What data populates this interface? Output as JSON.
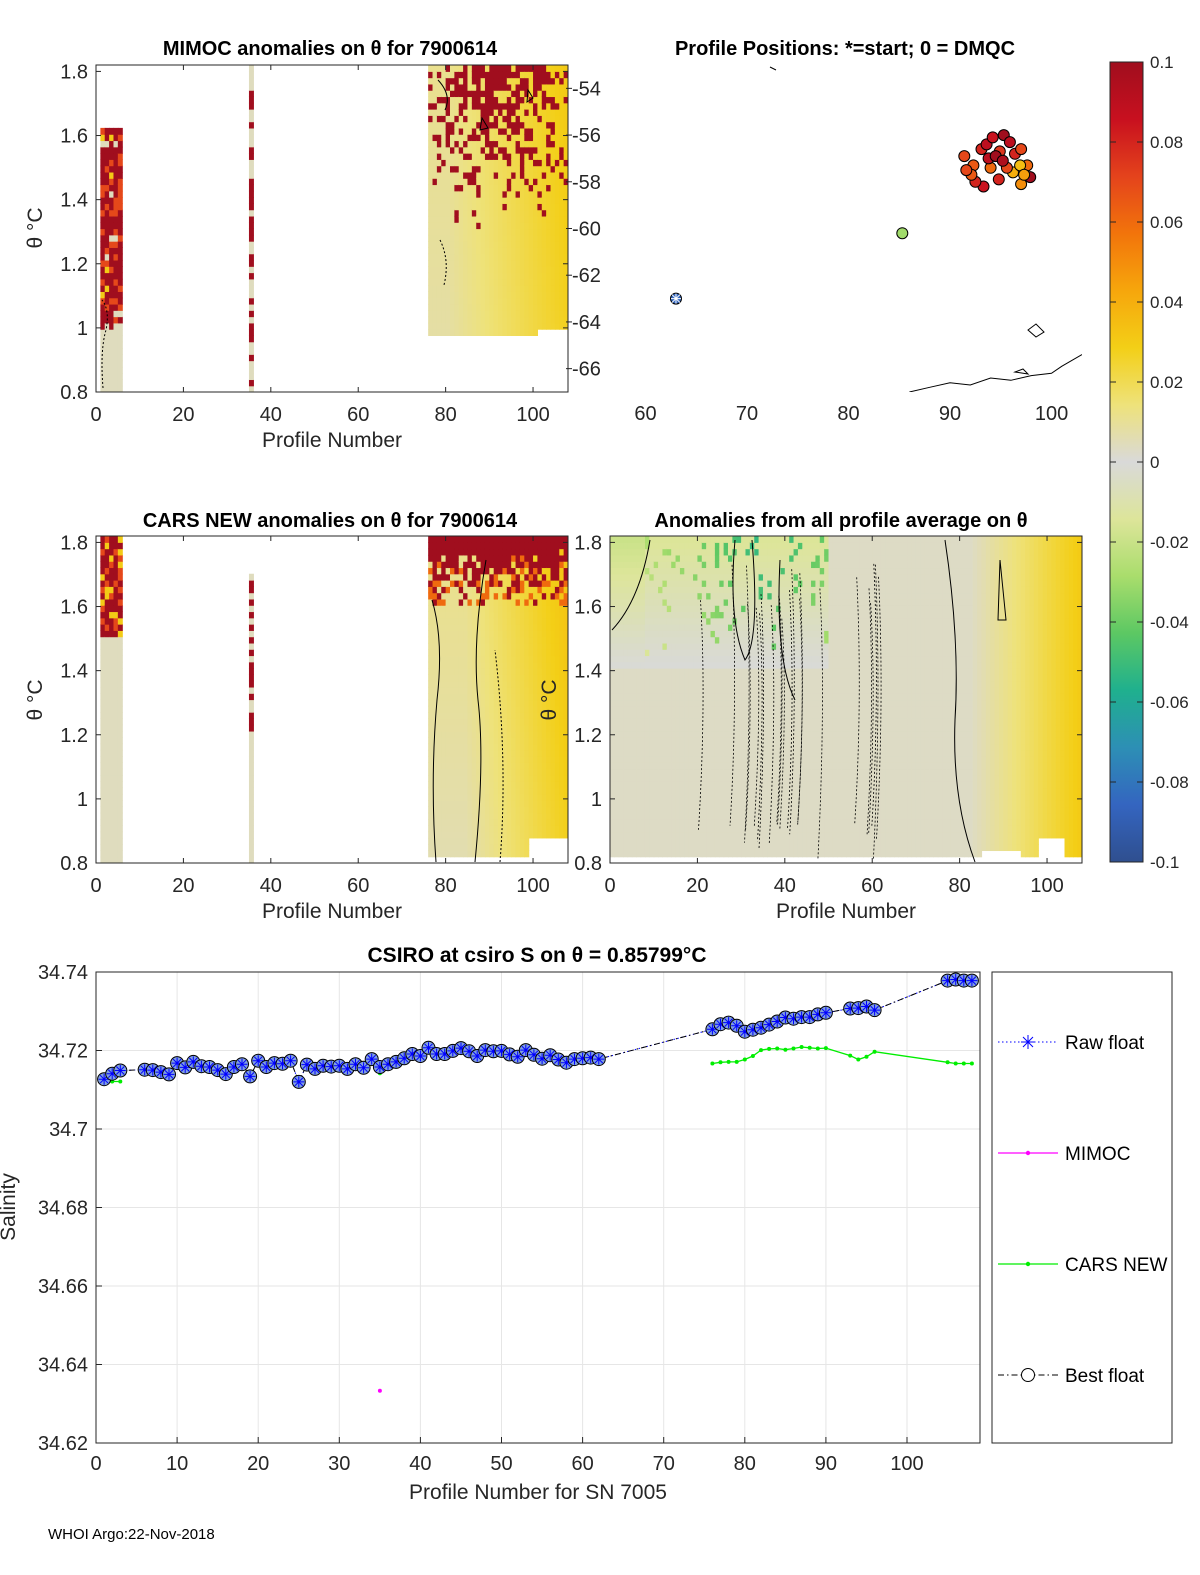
{
  "footer": "WHOI Argo:22-Nov-2018",
  "colors": {
    "float_blue": "#0000ff",
    "marker_fill": "#7f9fe0",
    "mimoc": "#ff00ff",
    "cars": "#00ee00",
    "grid": "#e6e6e6",
    "grey_field": "#d9d9d9"
  },
  "chart_data": [
    {
      "id": "mimoc-anomalies",
      "type": "heatmap",
      "title": "MIMOC anomalies on θ  for 7900614",
      "xlabel": "Profile Number",
      "ylabel": "θ °C",
      "xlim": [
        0,
        108
      ],
      "ylim": [
        0.8,
        1.82
      ],
      "xticks": [
        "0",
        "20",
        "40",
        "60",
        "80",
        "100"
      ],
      "yticks": [
        "0.8",
        "1",
        "1.2",
        "1.4",
        "1.6",
        "1.8"
      ],
      "regions": [
        {
          "x_range": [
            1,
            6
          ],
          "theta_max": 1.62,
          "note": "strong positive anomalies > 0.1"
        },
        {
          "x_range": [
            35,
            36
          ],
          "theta_max": 1.82,
          "note": "positive anomalies"
        },
        {
          "x_range": [
            76,
            108
          ],
          "theta_max": 1.82,
          "note": "positive anomalies near top, ~0.01-0.03 below"
        }
      ]
    },
    {
      "id": "profile-positions",
      "type": "scatter",
      "title": "Profile Positions: *=start; 0 = DMQC",
      "xlim": [
        56.5,
        103
      ],
      "ylim": [
        -67,
        -53
      ],
      "xticks": [
        "60",
        "70",
        "80",
        "90",
        "100"
      ],
      "yticks": [
        "-54",
        "-56",
        "-58",
        "-60",
        "-62",
        "-64",
        "-66"
      ],
      "start": {
        "lon": 63,
        "lat": -63
      },
      "points": [
        {
          "lon": 85.3,
          "lat": -60.2,
          "anomaly": -0.03
        },
        {
          "lon": 91.4,
          "lat": -56.9,
          "anomaly": 0.07
        },
        {
          "lon": 92.3,
          "lat": -57.3,
          "anomaly": 0.065
        },
        {
          "lon": 93.1,
          "lat": -56.6,
          "anomaly": 0.08
        },
        {
          "lon": 93.6,
          "lat": -56.4,
          "anomaly": 0.09
        },
        {
          "lon": 94.2,
          "lat": -56.1,
          "anomaly": 0.085
        },
        {
          "lon": 94.9,
          "lat": -56.7,
          "anomaly": 0.075
        },
        {
          "lon": 95.3,
          "lat": -56.0,
          "anomaly": 0.1
        },
        {
          "lon": 95.9,
          "lat": -56.3,
          "anomaly": 0.09
        },
        {
          "lon": 96.4,
          "lat": -56.8,
          "anomaly": 0.08
        },
        {
          "lon": 97.0,
          "lat": -56.6,
          "anomaly": 0.07
        },
        {
          "lon": 97.6,
          "lat": -57.3,
          "anomaly": 0.06
        },
        {
          "lon": 97.9,
          "lat": -57.8,
          "anomaly": 0.1
        },
        {
          "lon": 97.0,
          "lat": -58.1,
          "anomaly": 0.05
        },
        {
          "lon": 96.2,
          "lat": -57.6,
          "anomaly": 0.04
        },
        {
          "lon": 95.6,
          "lat": -57.4,
          "anomaly": 0.07
        },
        {
          "lon": 94.8,
          "lat": -57.9,
          "anomaly": 0.08
        },
        {
          "lon": 94.0,
          "lat": -57.4,
          "anomaly": 0.06
        },
        {
          "lon": 93.3,
          "lat": -58.2,
          "anomaly": 0.085
        },
        {
          "lon": 92.5,
          "lat": -58.0,
          "anomaly": 0.08
        },
        {
          "lon": 92.1,
          "lat": -57.7,
          "anomaly": 0.065
        },
        {
          "lon": 93.8,
          "lat": -57.0,
          "anomaly": 0.09
        },
        {
          "lon": 94.5,
          "lat": -56.9,
          "anomaly": 0.1
        },
        {
          "lon": 96.9,
          "lat": -57.3,
          "anomaly": 0.035
        },
        {
          "lon": 97.3,
          "lat": -57.7,
          "anomaly": 0.045
        },
        {
          "lon": 95.2,
          "lat": -57.1,
          "anomaly": 0.095
        },
        {
          "lon": 91.6,
          "lat": -57.5,
          "anomaly": 0.07
        }
      ],
      "coastline": [
        [
          86,
          -67
        ],
        [
          88,
          -66.8
        ],
        [
          90,
          -66.6
        ],
        [
          92,
          -66.7
        ],
        [
          94,
          -66.4
        ],
        [
          96,
          -66.5
        ],
        [
          98,
          -66.3
        ],
        [
          100,
          -66.2
        ],
        [
          101,
          -65.9
        ],
        [
          103,
          -65.4
        ]
      ]
    },
    {
      "id": "colorbar",
      "type": "colorbar",
      "range": [
        -0.1,
        0.1
      ],
      "ticks": [
        "0.1",
        "0.08",
        "0.06",
        "0.04",
        "0.02",
        "0",
        "-0.02",
        "-0.04",
        "-0.06",
        "-0.08",
        "-0.1"
      ],
      "stops": [
        "#2f4f8f",
        "#3465c0",
        "#2d8fb5",
        "#1fb08e",
        "#5cc863",
        "#a9dd6c",
        "#dde59a",
        "#d9d9d9",
        "#eee27a",
        "#f3cf17",
        "#f6a60c",
        "#f2740b",
        "#e4431c",
        "#c8101f",
        "#a00e1e"
      ]
    },
    {
      "id": "cars-anomalies",
      "type": "heatmap",
      "title": "CARS NEW anomalies on θ for 7900614",
      "xlabel": "Profile Number",
      "ylabel": "θ °C",
      "xlim": [
        0,
        108
      ],
      "ylim": [
        0.8,
        1.82
      ],
      "xticks": [
        "0",
        "20",
        "40",
        "60",
        "80",
        "100"
      ],
      "yticks": [
        "0.8",
        "1",
        "1.2",
        "1.4",
        "1.6",
        "1.8"
      ],
      "regions": [
        {
          "x_range": [
            1,
            6
          ],
          "theta_max": 1.82,
          "note": "positive anomalies above 1.5"
        },
        {
          "x_range": [
            35,
            36
          ],
          "theta_max": 1.7,
          "note": "positive anomalies"
        },
        {
          "x_range": [
            76,
            108
          ],
          "theta_max": 1.82,
          "note": "strong positive anomalies above 1.6"
        }
      ]
    },
    {
      "id": "all-profile-anomalies",
      "type": "heatmap",
      "title": "Anomalies from all profile average on θ",
      "xlabel": "Profile Number",
      "ylabel": "θ °C",
      "xlim": [
        0,
        108
      ],
      "ylim": [
        0.8,
        1.82
      ],
      "xticks": [
        "0",
        "20",
        "40",
        "60",
        "80",
        "100"
      ],
      "yticks": [
        "0.8",
        "1",
        "1.2",
        "1.4",
        "1.6",
        "1.8"
      ],
      "regions": [
        {
          "x_range": [
            0,
            50
          ],
          "theta_max": 1.82,
          "note": "weak negative anomalies near top"
        },
        {
          "x_range": [
            85,
            108
          ],
          "theta_max": 1.82,
          "note": "weak positive anomalies"
        }
      ]
    },
    {
      "id": "csiro-salinity",
      "type": "line",
      "title": "CSIRO at csiro S on θ = 0.85799°C",
      "xlabel": "Profile Number for SN 7005",
      "ylabel": "Salinity",
      "xlim": [
        0,
        109
      ],
      "ylim": [
        34.62,
        34.74
      ],
      "xticks": [
        "0",
        "10",
        "20",
        "30",
        "40",
        "50",
        "60",
        "70",
        "80",
        "90",
        "100"
      ],
      "yticks": [
        "34.74",
        "34.72",
        "34.7",
        "34.68",
        "34.66",
        "34.64",
        "34.62"
      ],
      "legend": [
        "Raw float",
        "MIMOC",
        "CARS NEW",
        "Best float"
      ],
      "series": [
        {
          "name": "Raw float",
          "x": [
            1,
            2,
            3,
            6,
            7,
            8,
            9,
            10,
            11,
            12,
            13,
            14,
            15,
            16,
            17,
            18,
            19,
            20,
            21,
            22,
            23,
            24,
            25,
            26,
            27,
            28,
            29,
            30,
            31,
            32,
            33,
            34,
            35,
            36,
            37,
            38,
            39,
            40,
            41,
            42,
            43,
            44,
            45,
            46,
            47,
            48,
            49,
            50,
            51,
            52,
            53,
            54,
            55,
            56,
            57,
            58,
            59,
            60,
            61,
            62,
            76,
            77,
            78,
            79,
            80,
            81,
            82,
            83,
            84,
            85,
            86,
            87,
            88,
            89,
            90,
            93,
            94,
            95,
            96,
            105,
            106,
            107,
            108
          ],
          "y": [
            34.7127,
            34.7141,
            34.7149,
            34.7151,
            34.715,
            34.7145,
            34.7139,
            34.7168,
            34.7157,
            34.7171,
            34.716,
            34.7158,
            34.715,
            34.714,
            34.7158,
            34.7165,
            34.7134,
            34.7174,
            34.7158,
            34.7168,
            34.7166,
            34.7174,
            34.712,
            34.7164,
            34.7153,
            34.7161,
            34.7159,
            34.7161,
            34.7153,
            34.7165,
            34.7156,
            34.7178,
            34.7158,
            34.7165,
            34.7171,
            34.718,
            34.7191,
            34.7186,
            34.7207,
            34.7191,
            34.7191,
            34.7199,
            34.7206,
            34.7198,
            34.7186,
            34.7201,
            34.7198,
            34.7199,
            34.719,
            34.7184,
            34.7201,
            34.7189,
            34.7179,
            34.7188,
            34.7177,
            34.7169,
            34.7178,
            34.718,
            34.7182,
            34.7178,
            34.7254,
            34.7267,
            34.7271,
            34.7263,
            34.7248,
            34.7253,
            34.7258,
            34.7266,
            34.7274,
            34.7284,
            34.7281,
            34.7285,
            34.7285,
            34.7292,
            34.7296,
            34.7307,
            34.7308,
            34.7312,
            34.7303,
            34.7378,
            34.7381,
            34.7378,
            34.7378
          ]
        },
        {
          "name": "MIMOC",
          "x": [
            1,
            2,
            3,
            35
          ],
          "y": [
            34.7129,
            34.7139,
            34.7143,
            34.6333
          ]
        },
        {
          "name": "CARS NEW",
          "x": [
            1,
            2,
            3,
            35,
            76,
            77,
            78,
            79,
            80,
            81,
            82,
            83,
            84,
            85,
            86,
            87,
            88,
            89,
            90,
            93,
            94,
            95,
            96,
            105,
            106,
            107,
            108
          ],
          "y": [
            34.7121,
            34.7121,
            34.7121,
            34.7142,
            34.7167,
            34.717,
            34.7171,
            34.7171,
            34.7177,
            34.7186,
            34.7201,
            34.7204,
            34.7205,
            34.7202,
            34.7205,
            34.7209,
            34.7207,
            34.7205,
            34.7206,
            34.7187,
            34.7177,
            34.7184,
            34.7197,
            34.717,
            34.7167,
            34.7167,
            34.7167
          ]
        },
        {
          "name": "Best float",
          "same_as": "Raw float"
        }
      ]
    }
  ]
}
